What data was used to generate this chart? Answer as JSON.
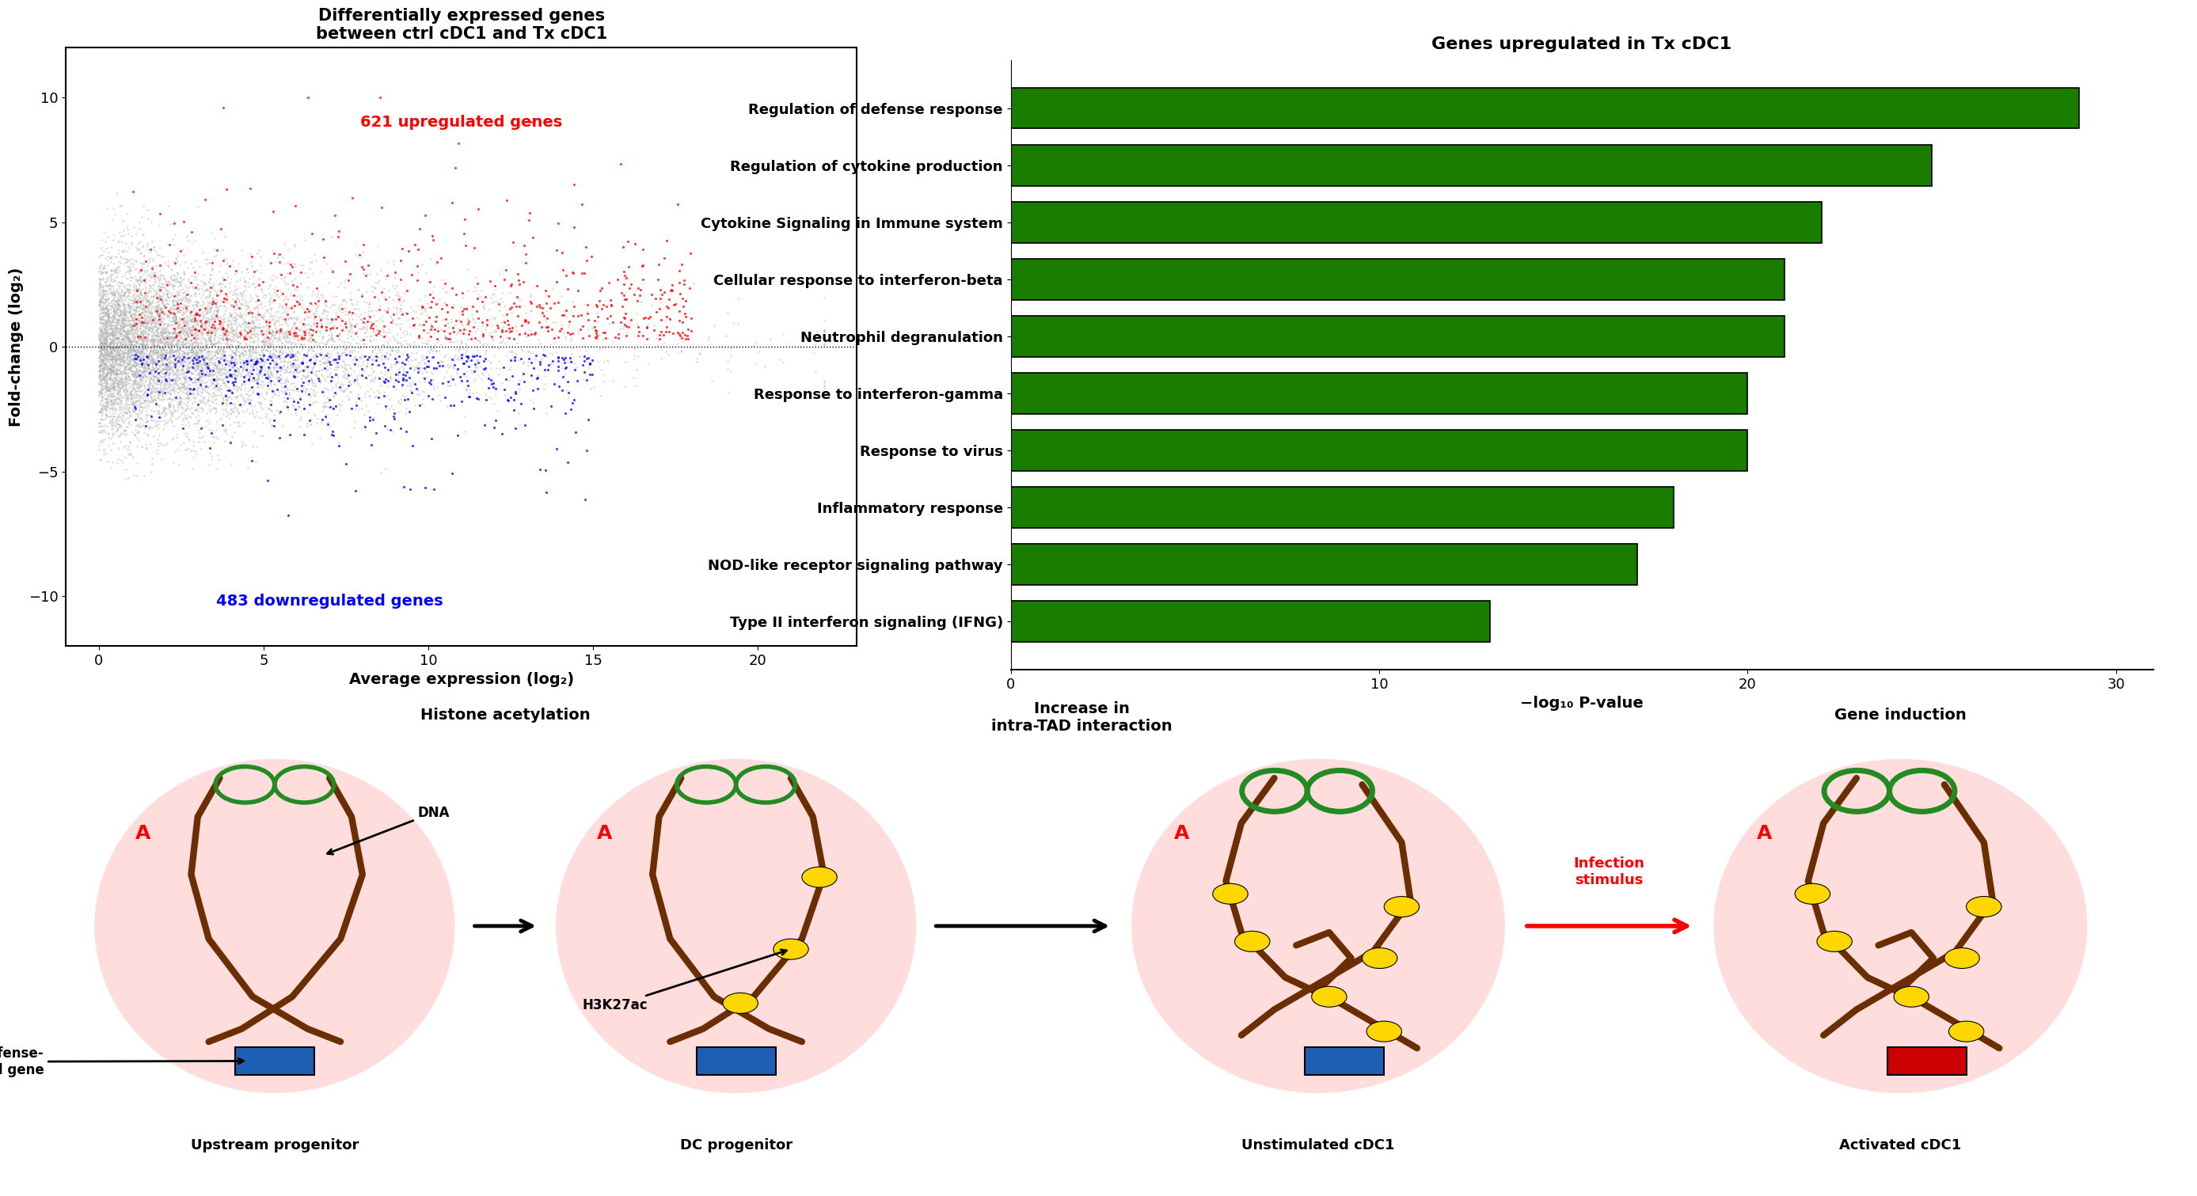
{
  "scatter_title": "Differentially expressed genes\nbetween ctrl cDC1 and Tx cDC1",
  "scatter_xlabel": "Average expression (log₂)",
  "scatter_ylabel": "Fold-change (log₂)",
  "scatter_xlim": [
    -1,
    23
  ],
  "scatter_ylim": [
    -12,
    12
  ],
  "scatter_xticks": [
    0,
    5,
    10,
    15,
    20
  ],
  "scatter_yticks": [
    -10,
    -5,
    0,
    5,
    10
  ],
  "upregulated_label": "621 upregulated genes",
  "downregulated_label": "483 downregulated genes",
  "bar_title": "Genes upregulated in Tx cDC1",
  "bar_xlabel": "−log₁₀ P-value",
  "bar_categories": [
    "Regulation of defense response",
    "Regulation of cytokine production",
    "Cytokine Signaling in Immune system",
    "Cellular response to interferon-beta",
    "Neutrophil degranulation",
    "Response to interferon-gamma",
    "Response to virus",
    "Inflammatory response",
    "NOD-like receptor signaling pathway",
    "Type II interferon signaling (IFNG)"
  ],
  "bar_values": [
    29,
    25,
    22,
    21,
    21,
    20,
    20,
    18,
    17,
    13
  ],
  "bar_color": "#1a7d00",
  "bar_xlim": [
    0,
    31
  ],
  "bar_xticks": [
    0,
    10,
    20,
    30
  ],
  "diagram_cell_labels": [
    "Upstream progenitor",
    "DC progenitor",
    "Unstimulated cDC1",
    "Activated cDC1"
  ],
  "diagram_arrow_titles": [
    "Histone acetylation",
    "Increase in\nintra-TAD interaction",
    "Gene induction"
  ],
  "dna_color": "#6B2E00",
  "loop_color": "#228B22",
  "gold_color": "#FFD700",
  "gene_blue": "#1E5FB3",
  "gene_red": "#CC0000",
  "cell_fill": "#FFDDDD",
  "cell_edge": "#FFBBBB",
  "red_text": "#CC0000"
}
